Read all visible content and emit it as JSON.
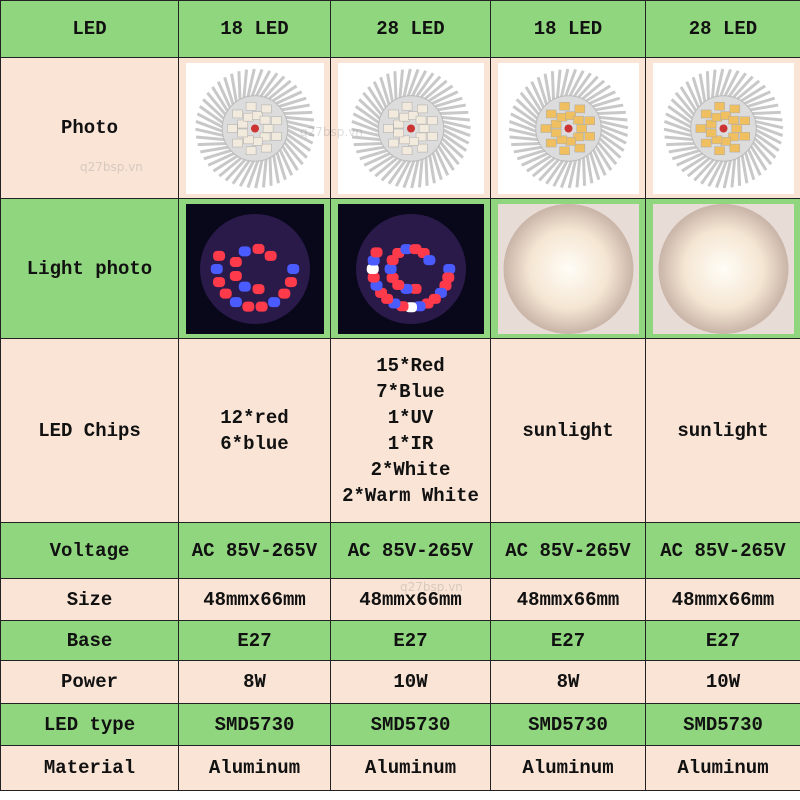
{
  "header": [
    "LED",
    "18 LED",
    "28 LED",
    "18 LED",
    "28 LED"
  ],
  "rows": [
    {
      "label": "Photo"
    },
    {
      "label": "Light photo"
    },
    {
      "label": "LED Chips",
      "cells": [
        [
          "12*red",
          "6*blue"
        ],
        [
          "15*Red",
          "7*Blue",
          "1*UV",
          "1*IR",
          "2*White",
          "2*Warm White"
        ],
        [
          "sunlight"
        ],
        [
          "sunlight"
        ]
      ]
    },
    {
      "label": "Voltage",
      "cells": [
        [
          "AC 85V-265V"
        ],
        [
          "AC 85V-265V"
        ],
        [
          "AC 85V-265V"
        ],
        [
          "AC 85V-265V"
        ]
      ]
    },
    {
      "label": "Size",
      "cells": [
        [
          "48mmx66mm"
        ],
        [
          "48mmx66mm"
        ],
        [
          "48mmx66mm"
        ],
        [
          "48mmx66mm"
        ]
      ]
    },
    {
      "label": "Base",
      "cells": [
        [
          "E27"
        ],
        [
          "E27"
        ],
        [
          "E27"
        ],
        [
          "E27"
        ]
      ]
    },
    {
      "label": "Power",
      "cells": [
        [
          "8W"
        ],
        [
          "10W"
        ],
        [
          "8W"
        ],
        [
          "10W"
        ]
      ]
    },
    {
      "label": "LED type",
      "cells": [
        [
          "SMD5730"
        ],
        [
          "SMD5730"
        ],
        [
          "SMD5730"
        ],
        [
          "SMD5730"
        ]
      ]
    },
    {
      "label": "Material",
      "cells": [
        [
          "Aluminum"
        ],
        [
          "Aluminum"
        ],
        [
          "Aluminum"
        ],
        [
          "Aluminum"
        ]
      ]
    }
  ],
  "watermark": "q27bsp.vn"
}
